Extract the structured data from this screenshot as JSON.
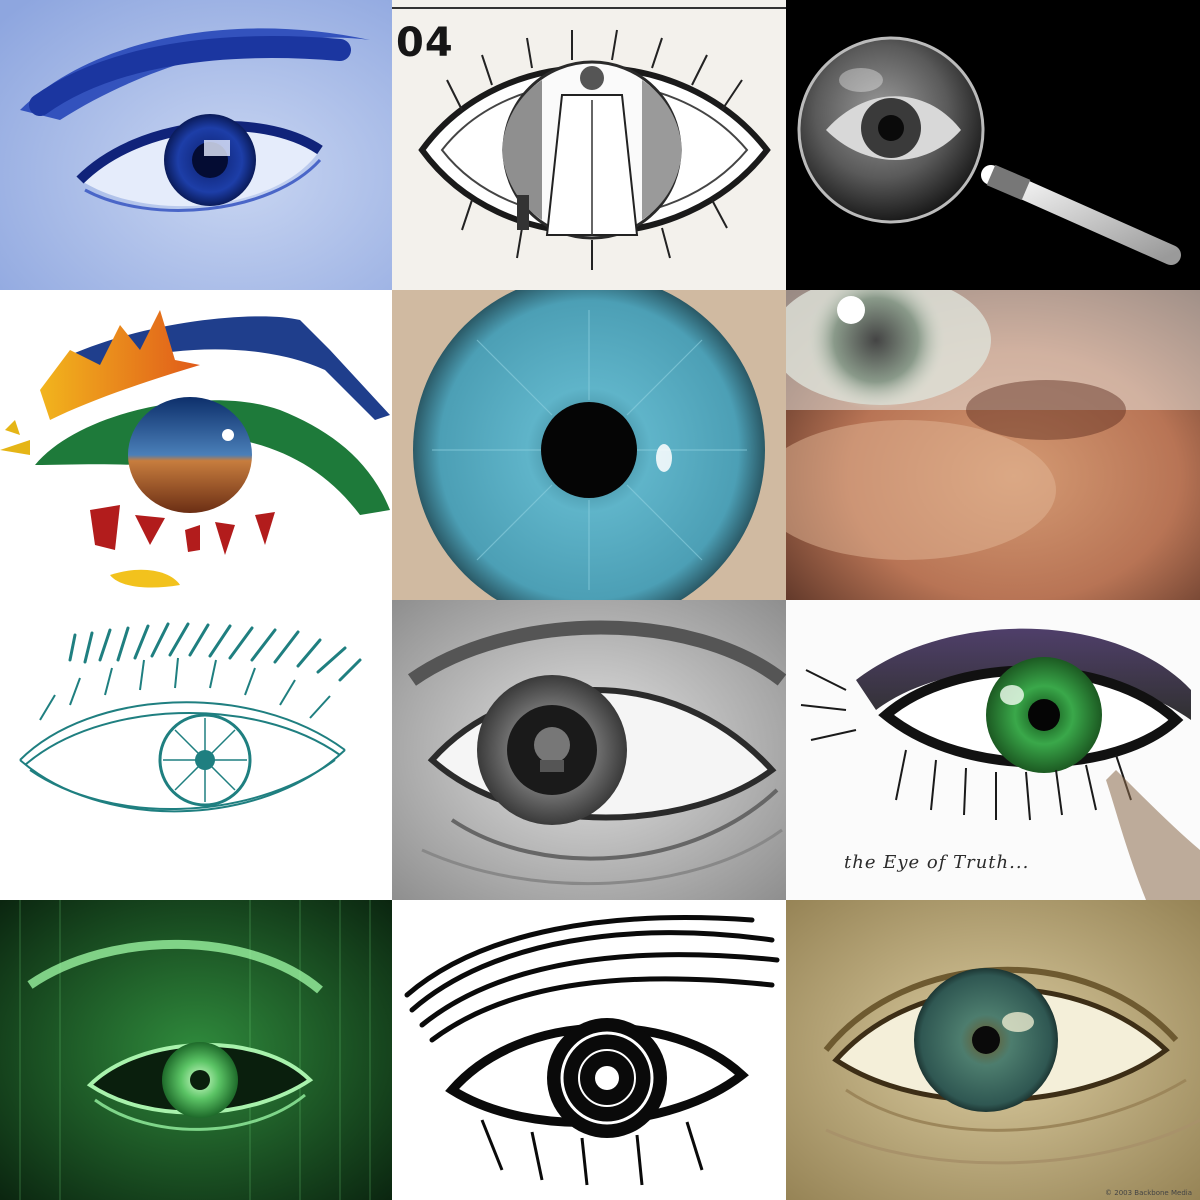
{
  "tiles": [
    {
      "id": "blue-tinted-photo-eye",
      "depicts": "eye-icon"
    },
    {
      "id": "engraving-eye-with-figure",
      "depicts": "eye-icon",
      "label": "04"
    },
    {
      "id": "magnifying-glass-eye",
      "depicts": "magnifier-icon"
    },
    {
      "id": "colorful-graphic-eye",
      "depicts": "eye-icon"
    },
    {
      "id": "blue-iris-closeup",
      "depicts": "iris-icon"
    },
    {
      "id": "blurred-eye-photo",
      "depicts": "eye-icon"
    },
    {
      "id": "teal-sketch-eye",
      "depicts": "eye-icon"
    },
    {
      "id": "reflective-drawn-eye",
      "depicts": "eye-icon"
    },
    {
      "id": "green-eye-of-truth",
      "depicts": "eye-icon",
      "caption": "the Eye of Truth..."
    },
    {
      "id": "matrix-green-eye",
      "depicts": "eye-icon"
    },
    {
      "id": "woodcut-eye",
      "depicts": "eye-icon"
    },
    {
      "id": "hazel-eye-photo",
      "depicts": "eye-icon",
      "credit": "© 2003 Backbone Media"
    }
  ],
  "colors": {
    "background": "#ffffff",
    "blue_tint": "#2c4fc0",
    "iris_blue": "#4fa0b8",
    "iris_green": "#3aa84a",
    "matrix_green": "#2f8a3c",
    "teal_sketch": "#1f7f80"
  }
}
